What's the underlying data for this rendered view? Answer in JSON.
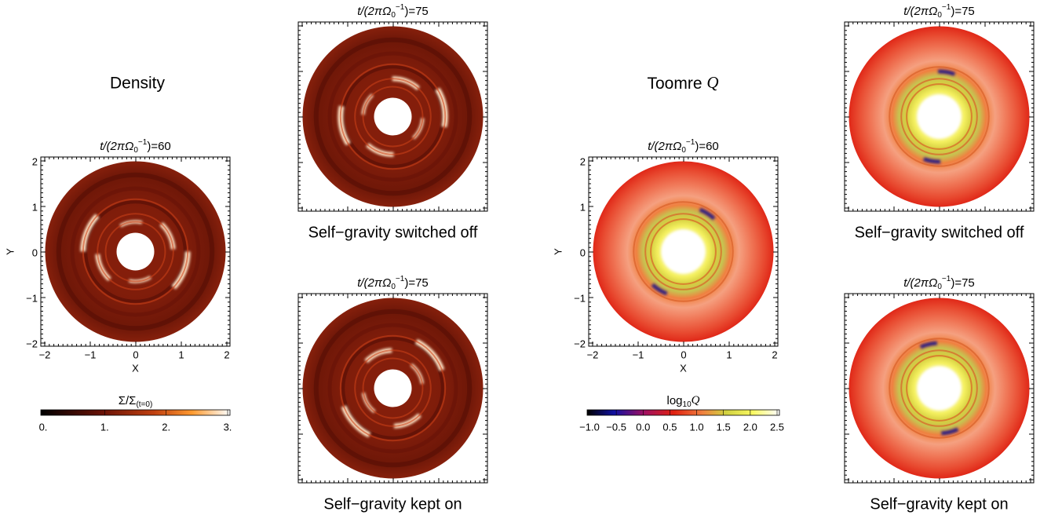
{
  "density": {
    "heading": "Density",
    "colorbar": {
      "label": "Σ/Σ",
      "label_sub": "(t=0)",
      "ticks": [
        "0.",
        "1.",
        "2.",
        "3."
      ]
    }
  },
  "toomre": {
    "heading": "Toomre ",
    "heading_q": "Q",
    "colorbar": {
      "label": "log",
      "label_sub": "10",
      "label_q": "Q",
      "ticks": [
        "−1.0",
        "−0.5",
        "0.0",
        "0.5",
        "1.0",
        "1.5",
        "2.0",
        "2.5"
      ]
    }
  },
  "axes": {
    "xticks": [
      "−2",
      "−1",
      "0",
      "1",
      "2"
    ],
    "yticks": [
      "2",
      "1",
      "0",
      "−1",
      "−2"
    ],
    "xlabel": "X",
    "ylabel": "Y"
  },
  "panels": [
    {
      "title": {
        "main": "t/(2πΩ",
        "sub": "0",
        "sup": "−1",
        "end": ")=60"
      }
    },
    {
      "title": {
        "main": "t/(2πΩ",
        "sub": "0",
        "sup": "−1",
        "end": ")=75"
      },
      "caption": "Self−gravity switched off"
    },
    {
      "title": {
        "main": "t/(2πΩ",
        "sub": "0",
        "sup": "−1",
        "end": ")=75"
      },
      "caption": "Self−gravity kept on"
    },
    {
      "title": {
        "main": "t/(2πΩ",
        "sub": "0",
        "sup": "−1",
        "end": ")=60"
      }
    },
    {
      "title": {
        "main": "t/(2πΩ",
        "sub": "0",
        "sup": "−1",
        "end": ")=75"
      },
      "caption": "Self−gravity switched off"
    },
    {
      "title": {
        "main": "t/(2πΩ",
        "sub": "0",
        "sup": "−1",
        "end": ")=75"
      },
      "caption": "Self−gravity kept on"
    }
  ]
}
